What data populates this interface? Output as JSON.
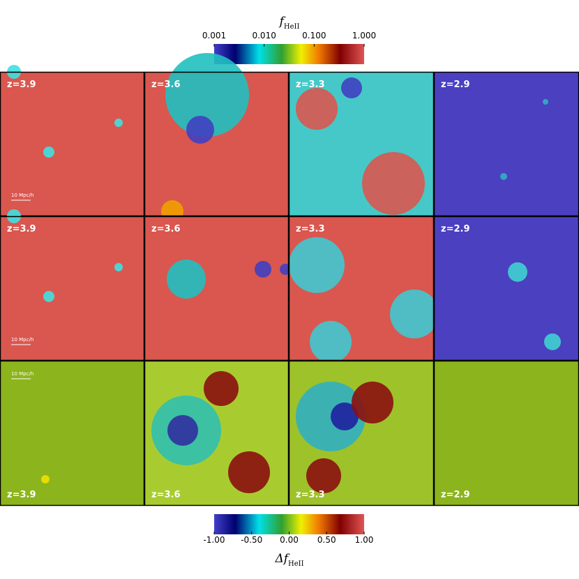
{
  "top_colorbar": {
    "title": {
      "symbol": "f",
      "subscript": "HeII"
    },
    "ticks": [
      "0.001",
      "0.010",
      "0.100",
      "1.000"
    ]
  },
  "rows": [
    {
      "panels": [
        {
          "label": "z=3.9",
          "scale_bar": "10 Mpc/h"
        },
        {
          "label": "z=3.6"
        },
        {
          "label": "z=3.3"
        },
        {
          "label": "z=2.9"
        }
      ]
    },
    {
      "panels": [
        {
          "label": "z=3.9",
          "scale_bar": "10 Mpc/h"
        },
        {
          "label": "z=3.6"
        },
        {
          "label": "z=3.3"
        },
        {
          "label": "z=2.9"
        }
      ]
    },
    {
      "panels": [
        {
          "label": "z=3.9",
          "scale_bar": "10 Mpc/h"
        },
        {
          "label": "z=3.6"
        },
        {
          "label": "z=3.3"
        },
        {
          "label": "z=2.9"
        }
      ]
    }
  ],
  "bottom_colorbar": {
    "title": {
      "symbol": "Δf",
      "subscript": "HeII"
    },
    "ticks": [
      "-1.00",
      "-0.50",
      "0.00",
      "0.50",
      "1.00"
    ]
  }
}
